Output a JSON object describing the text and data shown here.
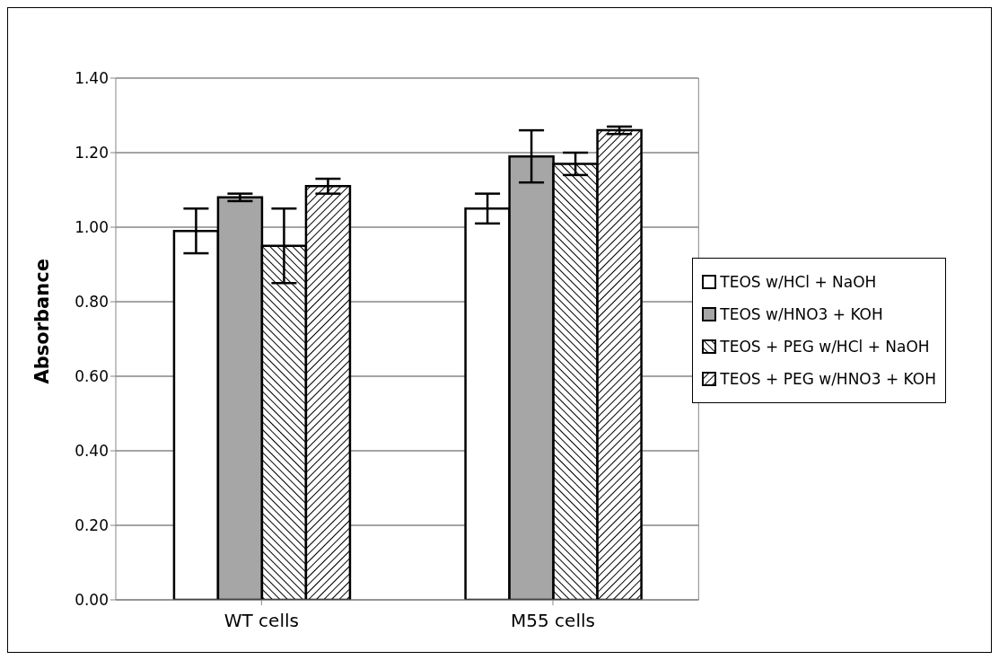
{
  "chart_data": {
    "type": "bar",
    "ylabel": "Absorbance",
    "categories": [
      "WT cells",
      "M55 cells"
    ],
    "series": [
      {
        "name": "TEOS w/HCl + NaOH",
        "color": "#ffffff",
        "values": [
          0.99,
          1.05
        ],
        "errors": [
          0.06,
          0.04
        ]
      },
      {
        "name": "TEOS w/HNO3 + KOH",
        "color": "#a6a6a6",
        "values": [
          1.08,
          1.19
        ],
        "errors": [
          0.01,
          0.07
        ]
      },
      {
        "name": "TEOS + PEG w/HCl + NaOH",
        "color": "#000000",
        "values": [
          0.95,
          1.17
        ],
        "errors": [
          0.1,
          0.03
        ]
      },
      {
        "name": "TEOS + PEG w/HNO3 + KOH",
        "color": "#000000",
        "values": [
          1.11,
          1.26
        ],
        "errors": [
          0.02,
          0.01
        ]
      }
    ],
    "ylim": [
      0,
      1.4
    ],
    "yticks": [
      {
        "value": 0,
        "label": "0.00"
      },
      {
        "value": 0.2,
        "label": "0.20"
      },
      {
        "value": 0.4,
        "label": "0.40"
      },
      {
        "value": 0.6,
        "label": "0.60"
      },
      {
        "value": 0.8,
        "label": "0.80"
      },
      {
        "value": 1,
        "label": "1.00"
      },
      {
        "value": 1.2,
        "label": "1.20"
      },
      {
        "value": 1.4,
        "label": "1.40"
      }
    ],
    "grid": "y",
    "legend": "right"
  }
}
